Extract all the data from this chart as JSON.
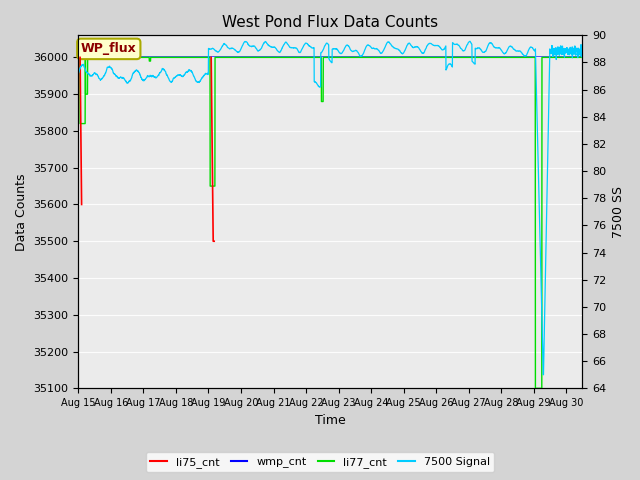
{
  "title": "West Pond Flux Data Counts",
  "xlabel": "Time",
  "ylabel": "Data Counts",
  "ylabel2": "7500 SS",
  "ylim": [
    35100,
    36060
  ],
  "ylim2": [
    64,
    90
  ],
  "xlim": [
    0,
    15.5
  ],
  "background_color": "#d4d4d4",
  "plot_bg_color": "#ebebeb",
  "annotation_text": "WP_flux",
  "annotation_bg": "#ffffcc",
  "annotation_border": "#aaaa00",
  "annotation_text_color": "#8b0000",
  "x_tick_positions": [
    0,
    1,
    2,
    3,
    4,
    5,
    6,
    7,
    8,
    9,
    10,
    11,
    12,
    13,
    14,
    15
  ],
  "x_tick_labels": [
    "Aug 15",
    "Aug 16",
    "Aug 17",
    "Aug 18",
    "Aug 19",
    "Aug 20",
    "Aug 21",
    "Aug 22",
    "Aug 23",
    "Aug 24",
    "Aug 25",
    "Aug 26",
    "Aug 27",
    "Aug 28",
    "Aug 29",
    "Aug 30"
  ],
  "left_yticks": [
    35100,
    35200,
    35300,
    35400,
    35500,
    35600,
    35700,
    35800,
    35900,
    36000
  ],
  "right_yticks": [
    64,
    66,
    68,
    70,
    72,
    74,
    76,
    78,
    80,
    82,
    84,
    86,
    88,
    90
  ],
  "legend_labels": [
    "li75_cnt",
    "wmp_cnt",
    "li77_cnt",
    "7500 Signal"
  ],
  "legend_colors": [
    "#ff0000",
    "#0000ff",
    "#00dd00",
    "#00ccff"
  ]
}
